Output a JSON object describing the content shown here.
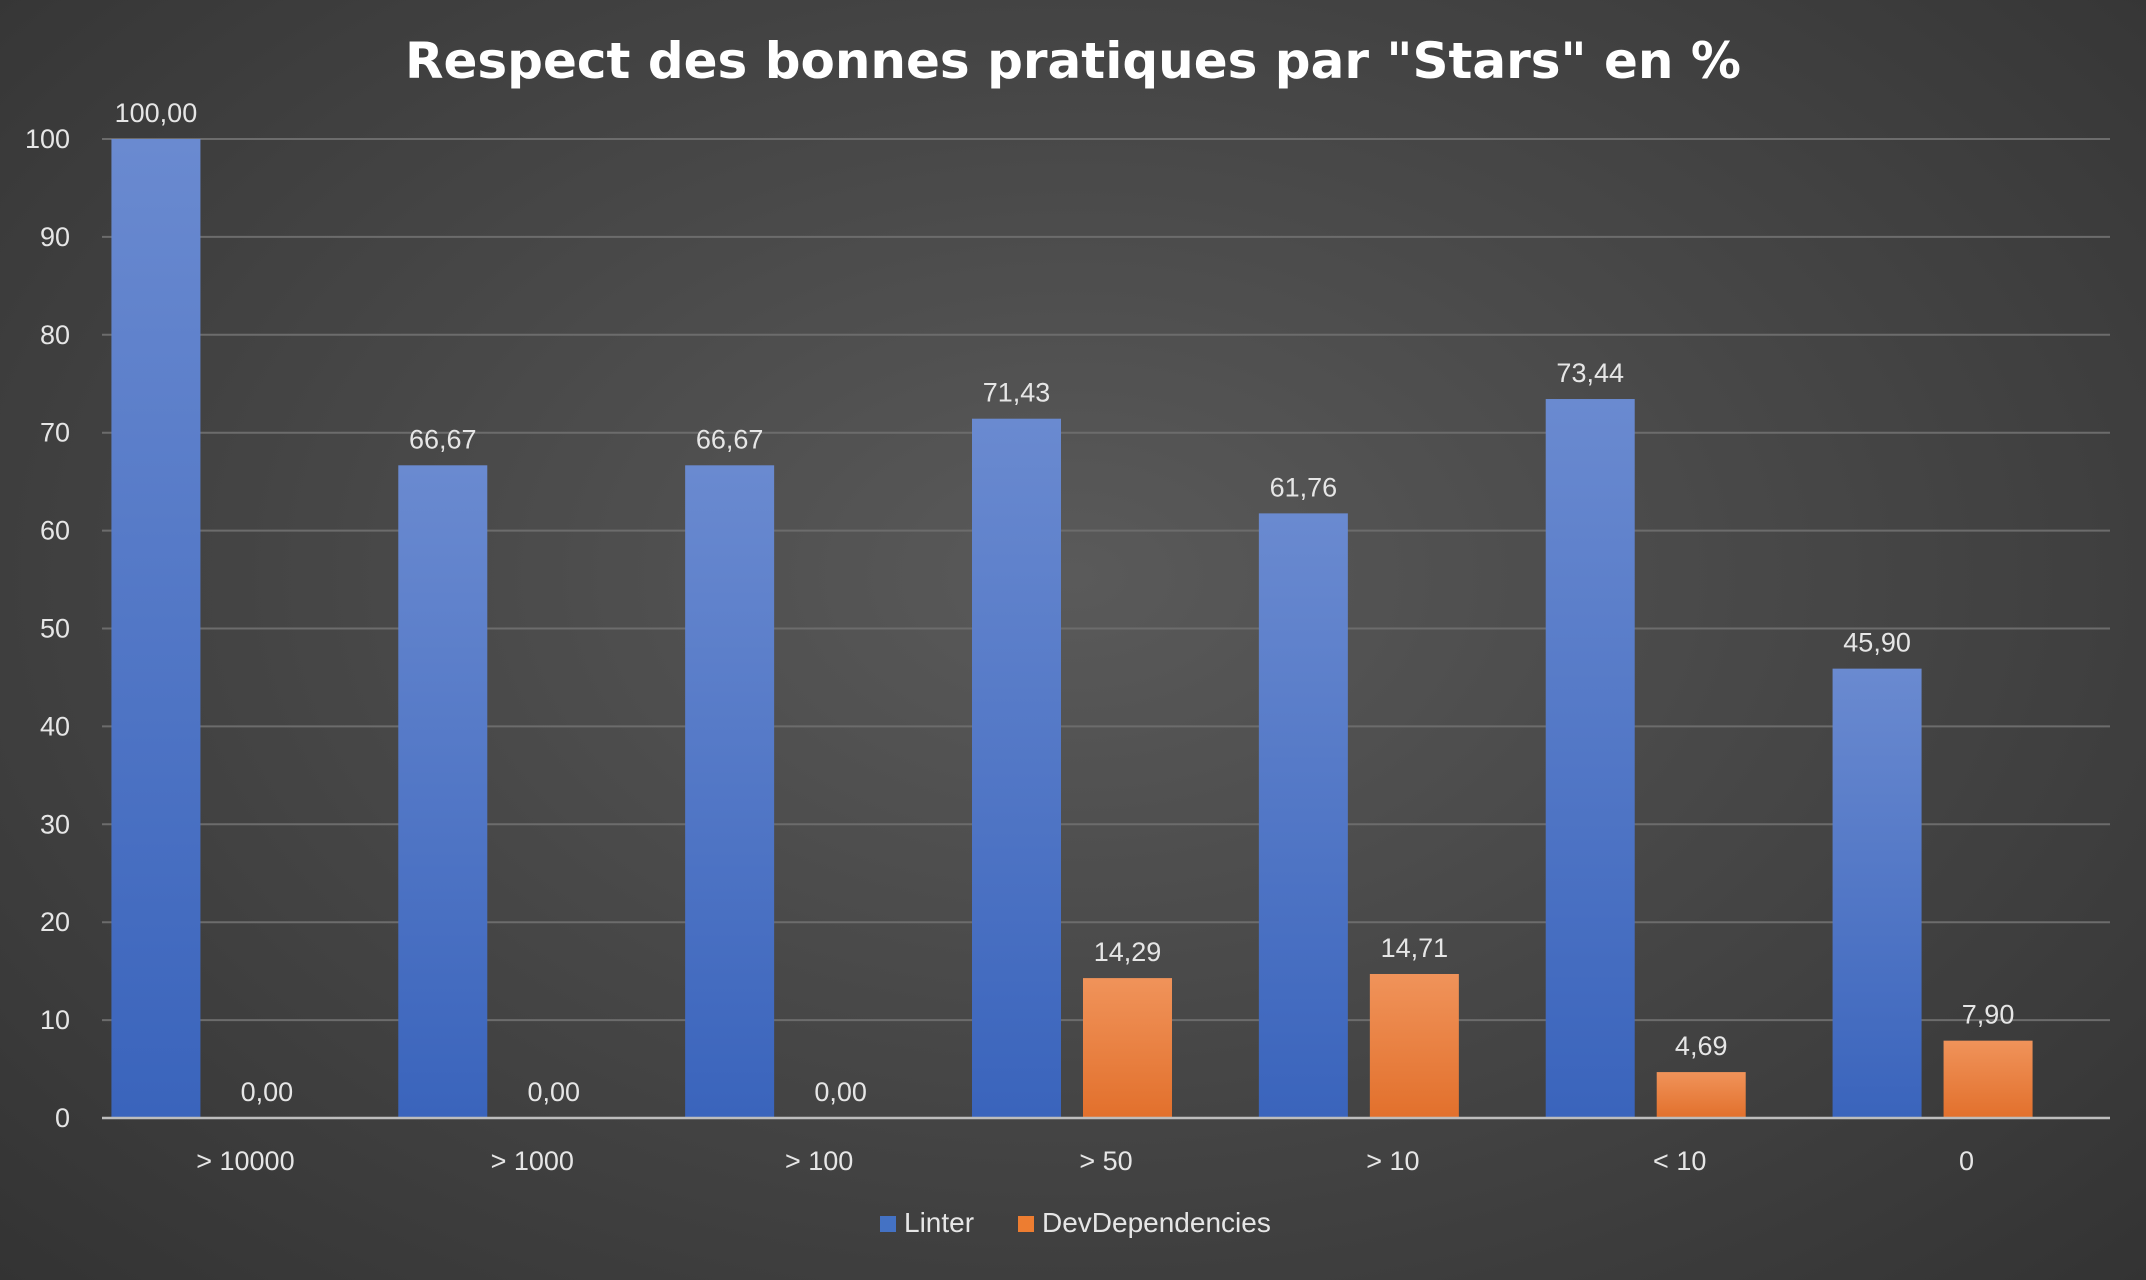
{
  "chart_data": {
    "type": "bar",
    "title": "Respect des bonnes pratiques par \"Stars\" en %",
    "xlabel": "",
    "ylabel": "",
    "ylim": [
      0,
      100
    ],
    "yticks": [
      0,
      10,
      20,
      30,
      40,
      50,
      60,
      70,
      80,
      90,
      100
    ],
    "grid": true,
    "legend_position": "bottom",
    "categories": [
      "> 10000",
      "> 1000",
      "> 100",
      "> 50",
      "> 10",
      "< 10",
      "0"
    ],
    "series": [
      {
        "name": "Linter",
        "color": "#4472c4",
        "values": [
          100.0,
          66.67,
          66.67,
          71.43,
          61.76,
          73.44,
          45.9
        ],
        "labels": [
          "100,00",
          "66,67",
          "66,67",
          "71,43",
          "61,76",
          "73,44",
          "45,90"
        ]
      },
      {
        "name": "DevDependencies",
        "color": "#ed7d31",
        "values": [
          0.0,
          0.0,
          0.0,
          14.29,
          14.71,
          4.69,
          7.9
        ],
        "labels": [
          "0,00",
          "0,00",
          "0,00",
          "14,29",
          "14,71",
          "4,69",
          "7,90"
        ]
      }
    ]
  }
}
